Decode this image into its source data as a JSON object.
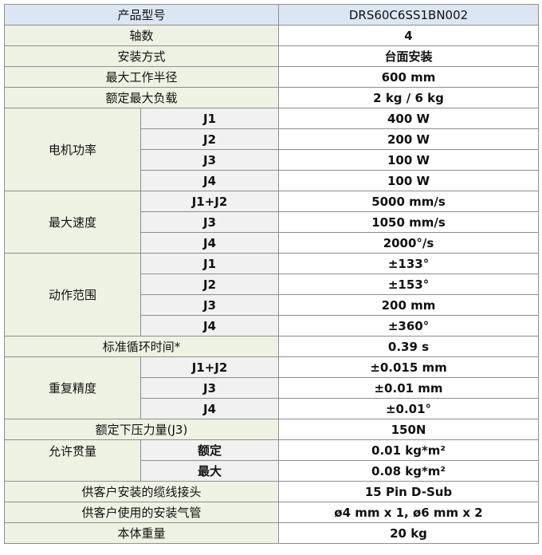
{
  "table": {
    "header": {
      "label": "产品型号",
      "value": "DRS60C6SS1BN002"
    },
    "rows": [
      {
        "label": "轴数",
        "value": "4"
      },
      {
        "label": "安装方式",
        "value": "台面安装"
      },
      {
        "label": "最大工作半径",
        "value": "600 mm"
      },
      {
        "label": "额定最大负载",
        "value": "2 kg / 6 kg"
      },
      {
        "label": "电机功率",
        "items": [
          {
            "sub": "J1",
            "value": "400 W"
          },
          {
            "sub": "J2",
            "value": "200 W"
          },
          {
            "sub": "J3",
            "value": "100 W"
          },
          {
            "sub": "J4",
            "value": "100 W"
          }
        ]
      },
      {
        "label": "最大速度",
        "items": [
          {
            "sub": "J1+J2",
            "value": "5000 mm/s"
          },
          {
            "sub": "J3",
            "value": "1050 mm/s"
          },
          {
            "sub": "J4",
            "value": "2000°/s"
          }
        ]
      },
      {
        "label": "动作范围",
        "items": [
          {
            "sub": "J1",
            "value": "±133°"
          },
          {
            "sub": "J2",
            "value": "±153°"
          },
          {
            "sub": "J3",
            "value": "200 mm"
          },
          {
            "sub": "J4",
            "value": "±360°"
          }
        ]
      },
      {
        "label": "标准循环时间*",
        "value": "0.39 s"
      },
      {
        "label": "重复精度",
        "items": [
          {
            "sub": "J1+J2",
            "value": "±0.015 mm"
          },
          {
            "sub": "J3",
            "value": "±0.01 mm"
          },
          {
            "sub": "J4",
            "value": "±0.01°"
          }
        ]
      },
      {
        "label": "额定下压力量(J3)",
        "value": "150N"
      },
      {
        "label": "允许贯量",
        "top": true,
        "items": [
          {
            "sub": "额定",
            "value": "0.01 kg*m²"
          },
          {
            "sub": "最大",
            "value": "0.08 kg*m²"
          }
        ]
      },
      {
        "label": "供客户安装的缆线接头",
        "value": "15 Pin D-Sub"
      },
      {
        "label": "供客户使用的安装气管",
        "value": "ø4 mm x 1, ø6 mm x 2"
      },
      {
        "label": "本体重量",
        "value": "20 kg"
      }
    ]
  }
}
